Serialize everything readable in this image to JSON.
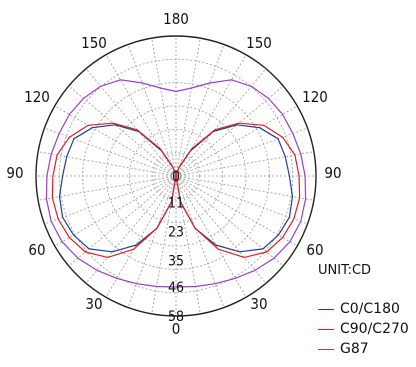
{
  "chart_data": {
    "type": "polar",
    "unit_label": "UNIT:CD",
    "angle_labels": {
      "top": "180",
      "upper_left": "150",
      "upper_right": "150",
      "mid_upper_left": "120",
      "mid_upper_right": "120",
      "left": "90",
      "right": "90",
      "mid_lower_left": "60",
      "mid_lower_right": "60",
      "lower_left": "30",
      "lower_right": "30",
      "bottom": "0"
    },
    "radial_labels": [
      "0",
      "11",
      "23",
      "35",
      "46",
      "58"
    ],
    "radial_max": 58,
    "angles_deg": [
      0,
      10,
      20,
      30,
      40,
      50,
      60,
      70,
      80,
      90,
      100,
      110,
      120,
      130,
      140,
      150,
      160,
      170,
      180
    ],
    "series": [
      {
        "name": "C0/C180",
        "color": "#1f3f94",
        "values": [
          0,
          11,
          23,
          33,
          41,
          47,
          49,
          50,
          49,
          47,
          46,
          45,
          40,
          33,
          24,
          12,
          4,
          1,
          0
        ]
      },
      {
        "name": "C90/C270",
        "color": "#e02020",
        "values": [
          0,
          11,
          23,
          35,
          44,
          49,
          51,
          52,
          52,
          51,
          50,
          47,
          42,
          34,
          25,
          13,
          4,
          1,
          0
        ]
      },
      {
        "name": "G87",
        "color": "#9b3fc4",
        "values": [
          46,
          46.5,
          47.5,
          49,
          51,
          53,
          54.5,
          55,
          54.5,
          53.5,
          52.5,
          51.5,
          51,
          50,
          48.5,
          46,
          41,
          37,
          35
        ]
      }
    ],
    "legend": [
      "C0/C180",
      "C90/C270",
      "G87"
    ],
    "legend_position": "bottom-right",
    "grid": true
  }
}
